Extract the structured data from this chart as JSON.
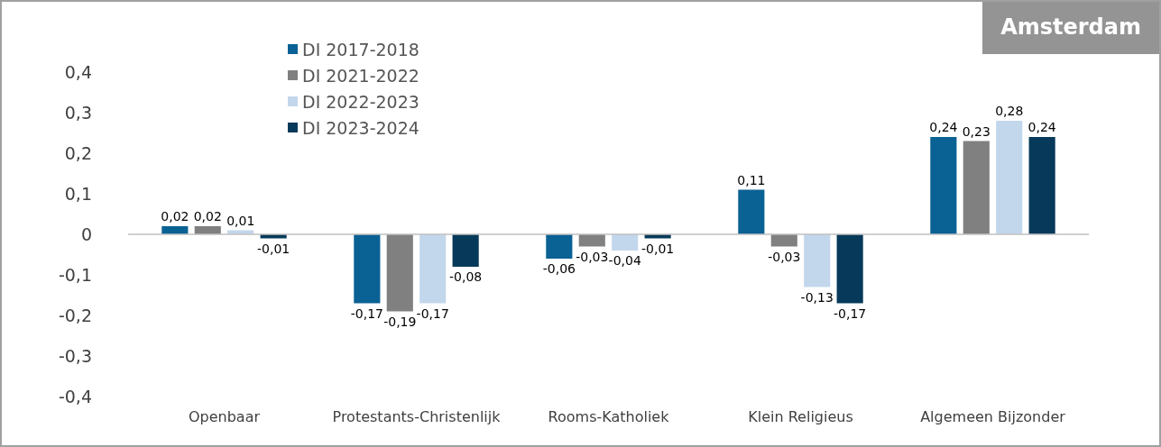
{
  "chart_data": {
    "type": "bar",
    "title": "Amsterdam",
    "categories": [
      "Openbaar",
      "Protestants-Christenlijk",
      "Rooms-Katholiek",
      "Klein Religieus",
      "Algemeen Bijzonder"
    ],
    "series": [
      {
        "name": "DI 2017-2018",
        "color": "#0a6194",
        "values": [
          0.02,
          -0.17,
          -0.06,
          0.11,
          0.24
        ],
        "value_labels": [
          "0,02",
          "-0,17",
          "-0,06",
          "0,11",
          "0,24"
        ]
      },
      {
        "name": "DI 2021-2022",
        "color": "#808080",
        "values": [
          0.02,
          -0.19,
          -0.03,
          -0.03,
          0.23
        ],
        "value_labels": [
          "0,02",
          "-0,19",
          "-0,03",
          "-0,03",
          "0,23"
        ]
      },
      {
        "name": "DI 2022-2023",
        "color": "#c3d7ec",
        "values": [
          0.01,
          -0.17,
          -0.04,
          -0.13,
          0.28
        ],
        "value_labels": [
          "0,01",
          "-0,17",
          "-0,04",
          "-0,13",
          "0,28"
        ]
      },
      {
        "name": "DI 2023-2024",
        "color": "#073a5a",
        "values": [
          -0.01,
          -0.08,
          -0.01,
          -0.17,
          0.24
        ],
        "value_labels": [
          "-0,01",
          "-0,08",
          "-0,01",
          "-0,17",
          "0,24"
        ]
      }
    ],
    "ylim": [
      -0.4,
      0.4
    ],
    "yticks": [
      {
        "value": -0.4,
        "label": "-0,4"
      },
      {
        "value": -0.3,
        "label": "-0,3"
      },
      {
        "value": -0.2,
        "label": "-0,2"
      },
      {
        "value": -0.1,
        "label": "-0,1"
      },
      0,
      {
        "value": 0.1,
        "label": "0,1"
      },
      {
        "value": 0.2,
        "label": "0,2"
      },
      {
        "value": 0.3,
        "label": "0,3"
      },
      {
        "value": 0.4,
        "label": "0,4"
      }
    ],
    "ref_lines": [
      {
        "axis": "y",
        "value": 0,
        "color": "#c0c0c0"
      }
    ],
    "grid": false,
    "legend": "top left"
  }
}
